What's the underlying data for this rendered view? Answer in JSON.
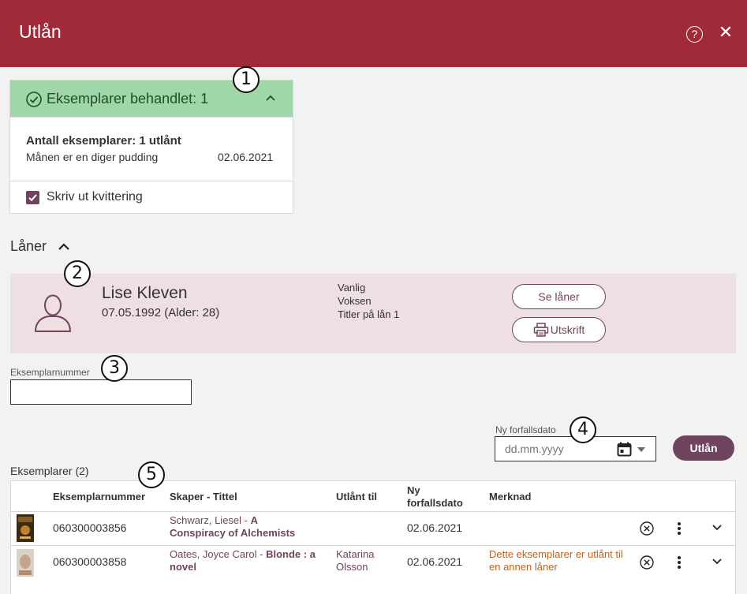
{
  "header": {
    "title": "Utlån",
    "help_glyph": "?",
    "close_glyph": "✕"
  },
  "callouts": [
    "1",
    "2",
    "3",
    "4",
    "5"
  ],
  "summary": {
    "title": "Eksemplarer behandlet: 1",
    "count_text": "Antall eksemplarer: 1 utlånt",
    "item_title": "Månen er en diger pudding",
    "item_date": "02.06.2021",
    "print_receipt_label": "Skriv ut kvittering",
    "print_receipt_checked": true
  },
  "borrower_section": {
    "label": "Låner"
  },
  "borrower": {
    "name": "Lise Kleven",
    "dob": "07.05.1992 (Alder: 28)",
    "info": [
      "Vanlig",
      "Voksen",
      "Titler på lån 1"
    ],
    "view_button": "Se låner",
    "print_button": "Utskrift"
  },
  "copy_number": {
    "label": "Eksemplarnummer",
    "value": ""
  },
  "due_date": {
    "label": "Ny forfallsdato",
    "placeholder": "dd.mm.yyyy"
  },
  "loan_button": "Utlån",
  "items": {
    "label": "Eksemplarer (2)",
    "columns": [
      "Eksemplarnummer",
      "Skaper - Tittel",
      "Utlånt til",
      "Ny forfallsdato",
      "Merknad"
    ],
    "rows": [
      {
        "number": "060300003856",
        "creator": "Schwarz, Liesel",
        "separator": " - ",
        "title": "A Conspiracy of Alchemists",
        "loaned_to": "",
        "due": "02.06.2021",
        "note": ""
      },
      {
        "number": "060300003858",
        "creator": "Oates, Joyce Carol",
        "separator": " - ",
        "title": "Blonde : a novel",
        "loaned_to": "Katarina Olsson",
        "due": "02.06.2021",
        "note": "Dette eksemplarer er utlånt til en annen låner"
      }
    ]
  },
  "colors": {
    "header": "#a02a38",
    "accent": "#70435f",
    "success": "#9fd7a9",
    "borrower_bg": "#eedfe3",
    "warning": "#c0601a"
  }
}
